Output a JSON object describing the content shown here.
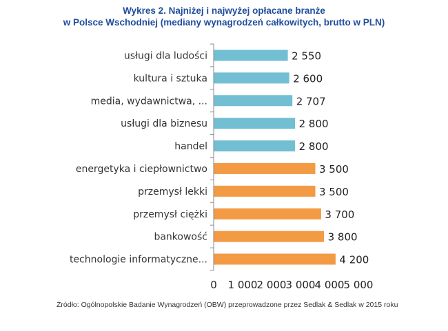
{
  "chart_data": {
    "type": "bar",
    "orientation": "horizontal",
    "title_line1": "Wykres 2. Najniżej i najwyżej opłacane branże",
    "title_line2": "w Polsce Wschodniej (mediany wynagrodzeń całkowitych, brutto w PLN)",
    "categories": [
      "usługi dla ludości",
      "kultura i sztuka",
      "media, wydawnictwa, ...",
      "usługi dla biznesu",
      "handel",
      "energetyka i ciepłownictwo",
      "przemysł lekki",
      "przemysł ciężki",
      "bankowość",
      "technologie informatyczne..."
    ],
    "values": [
      2550,
      2600,
      2707,
      2800,
      2800,
      3500,
      3500,
      3700,
      3800,
      4200
    ],
    "value_labels": [
      "2 550",
      "2 600",
      "2 707",
      "2 800",
      "2 800",
      "3 500",
      "3 500",
      "3 700",
      "3 800",
      "4 200"
    ],
    "bar_groups": [
      "low",
      "low",
      "low",
      "low",
      "low",
      "high",
      "high",
      "high",
      "high",
      "high"
    ],
    "colors": {
      "low": "#72bfd3",
      "high": "#f39a45",
      "axis": "#8a8a8a"
    },
    "xlim": [
      0,
      5000
    ],
    "xticks": [
      0,
      1000,
      2000,
      3000,
      4000,
      5000
    ],
    "xtick_labels": [
      "0",
      "1 000",
      "2 000",
      "3 000",
      "4 000",
      "5 000"
    ],
    "xlabel": "",
    "ylabel": "",
    "grid": false
  },
  "source": "Źródło: Ogólnopolskie Badanie Wynagrodzeń (OBW) przeprowadzone przez Sedlak & Sedlak w 2015 roku"
}
